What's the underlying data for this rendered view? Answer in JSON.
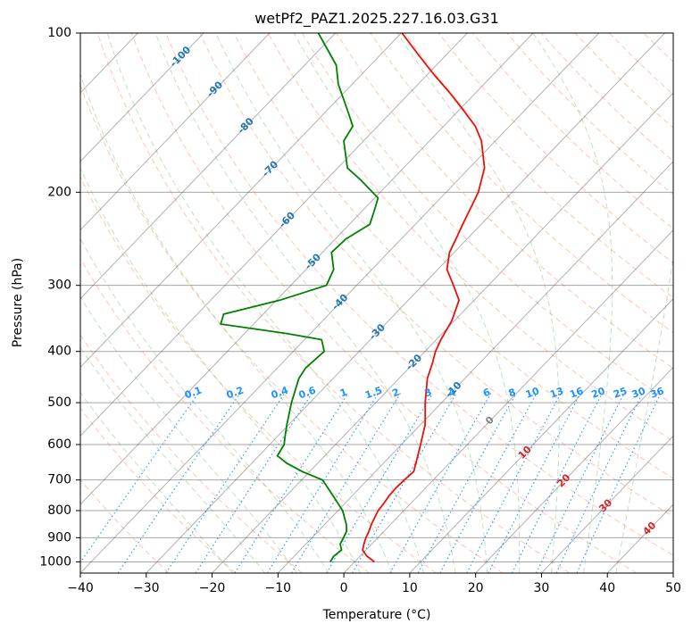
{
  "chart_data": {
    "type": "line",
    "title": "wetPf2_PAZ1.2025.227.16.03.G31",
    "xlabel": "Temperature (°C)",
    "ylabel": "Pressure (hPa)",
    "xlim": [
      -40,
      50
    ],
    "ylim": [
      1050,
      100
    ],
    "yscale": "log",
    "grid": true,
    "x_ticks": [
      "−40",
      "−30",
      "−20",
      "−10",
      "0",
      "10",
      "20",
      "30",
      "40",
      "50"
    ],
    "x_tick_values": [
      -40,
      -30,
      -20,
      -10,
      0,
      10,
      20,
      30,
      40,
      50
    ],
    "y_ticks": [
      "100",
      "200",
      "300",
      "400",
      "500",
      "600",
      "700",
      "800",
      "900",
      "1000"
    ],
    "y_tick_values": [
      100,
      200,
      300,
      400,
      500,
      600,
      700,
      800,
      900,
      1000
    ],
    "series": [
      {
        "role": "temperature",
        "color": "#e8120c",
        "points": [
          [
            1000,
            3.0
          ],
          [
            975,
            1.0
          ],
          [
            950,
            -0.5
          ],
          [
            925,
            -1.2
          ],
          [
            900,
            -1.8
          ],
          [
            875,
            -2.3
          ],
          [
            850,
            -2.9
          ],
          [
            825,
            -3.4
          ],
          [
            800,
            -3.9
          ],
          [
            775,
            -4.1
          ],
          [
            750,
            -4.4
          ],
          [
            725,
            -4.5
          ],
          [
            700,
            -4.4
          ],
          [
            675,
            -4.2
          ],
          [
            650,
            -5.1
          ],
          [
            600,
            -7.1
          ],
          [
            550,
            -9.3
          ],
          [
            500,
            -12.5
          ],
          [
            450,
            -15.7
          ],
          [
            420,
            -17.2
          ],
          [
            400,
            -18.4
          ],
          [
            380,
            -19.3
          ],
          [
            350,
            -20.4
          ],
          [
            320,
            -22.3
          ],
          [
            300,
            -25.3
          ],
          [
            280,
            -28.6
          ],
          [
            260,
            -30.7
          ],
          [
            245,
            -31.7
          ],
          [
            230,
            -32.8
          ],
          [
            215,
            -33.9
          ],
          [
            200,
            -35.1
          ],
          [
            180,
            -37.7
          ],
          [
            160,
            -42.1
          ],
          [
            150,
            -45.2
          ],
          [
            140,
            -49.3
          ],
          [
            130,
            -53.8
          ],
          [
            120,
            -58.9
          ],
          [
            110,
            -64.2
          ],
          [
            100,
            -69.9
          ]
        ]
      },
      {
        "role": "dewpoint",
        "color": "#008000",
        "points": [
          [
            1000,
            -3.7
          ],
          [
            975,
            -4.0
          ],
          [
            950,
            -3.7
          ],
          [
            925,
            -4.8
          ],
          [
            900,
            -5.2
          ],
          [
            875,
            -5.7
          ],
          [
            850,
            -6.7
          ],
          [
            800,
            -9.3
          ],
          [
            750,
            -12.9
          ],
          [
            700,
            -16.8
          ],
          [
            675,
            -21.1
          ],
          [
            650,
            -24.8
          ],
          [
            630,
            -27.2
          ],
          [
            600,
            -27.8
          ],
          [
            580,
            -28.8
          ],
          [
            550,
            -30.3
          ],
          [
            500,
            -32.8
          ],
          [
            450,
            -35.2
          ],
          [
            430,
            -35.7
          ],
          [
            400,
            -35.3
          ],
          [
            380,
            -37.4
          ],
          [
            370,
            -43.6
          ],
          [
            355,
            -55.0
          ],
          [
            340,
            -56.0
          ],
          [
            320,
            -49.5
          ],
          [
            300,
            -44.6
          ],
          [
            280,
            -45.8
          ],
          [
            260,
            -48.6
          ],
          [
            245,
            -48.4
          ],
          [
            230,
            -46.9
          ],
          [
            215,
            -48.4
          ],
          [
            205,
            -49.5
          ],
          [
            190,
            -54.6
          ],
          [
            180,
            -58.5
          ],
          [
            160,
            -63.0
          ],
          [
            150,
            -63.8
          ],
          [
            140,
            -66.9
          ],
          [
            125,
            -72.1
          ],
          [
            115,
            -75.2
          ],
          [
            100,
            -82.6
          ]
        ]
      }
    ],
    "isotherm_labels": [
      "-100",
      "-90",
      "-80",
      "-70",
      "-60",
      "-50",
      "-40",
      "-30",
      "-20",
      "-10"
    ],
    "isotherm_label_values": [
      -100,
      -90,
      -80,
      -70,
      -60,
      -50,
      -40,
      -30,
      -20,
      -10
    ],
    "mixing_ratio_labels": [
      "0.1",
      "0.2",
      "0.4",
      "0.6",
      "1",
      "1.5",
      "2",
      "3",
      "4",
      "6",
      "8",
      "10",
      "13",
      "16",
      "20",
      "25",
      "30",
      "36"
    ],
    "mixing_ratio_values": [
      0.1,
      0.2,
      0.4,
      0.6,
      1,
      1.5,
      2,
      3,
      4,
      6,
      8,
      10,
      13,
      16,
      20,
      25,
      30,
      36
    ],
    "isotherm_labels_lower": [
      "0",
      "10",
      "20",
      "30",
      "40"
    ],
    "isotherm_labels_lower_values": [
      0,
      10,
      20,
      30,
      40
    ],
    "colors": {
      "isotherm_text": "#1f77b4",
      "mixing_text": "#1e90ff",
      "mixing_line": "#1e90ff",
      "dry_adiabat": "#ff7f50",
      "moist_adiabat": "#2ca02c",
      "temp_grid": "#555555",
      "warm_label": "#d62728",
      "zero_label": "#808080"
    }
  }
}
